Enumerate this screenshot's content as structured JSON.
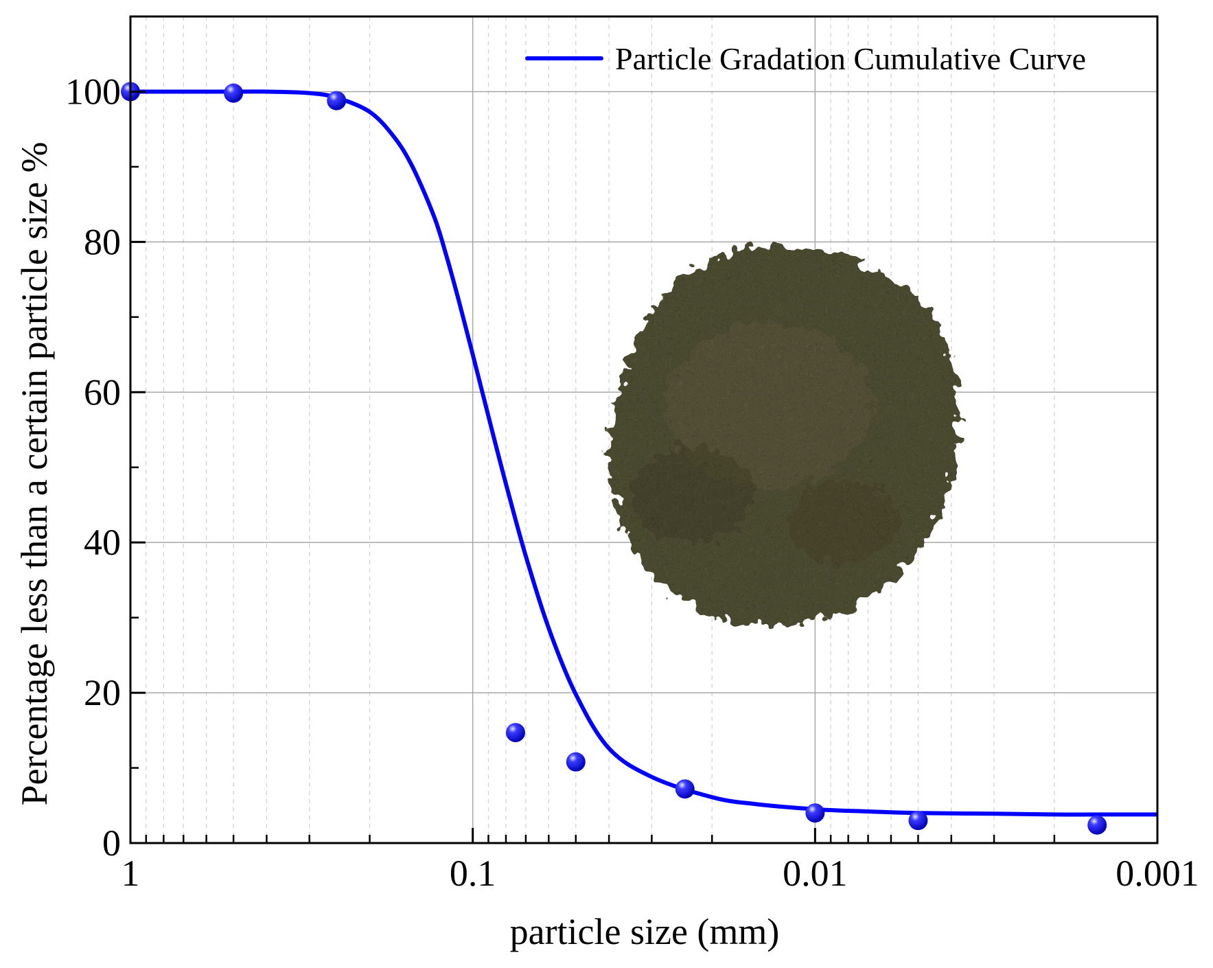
{
  "chart_data": {
    "type": "scatter",
    "xlabel": "particle size (mm)",
    "ylabel": "Percentage less than a certain particle size %",
    "x_scale": "log",
    "x_reversed": true,
    "xlim": [
      1,
      0.001
    ],
    "ylim": [
      0,
      110
    ],
    "grid": true,
    "legend_position": "top-right",
    "x_ticks": [
      {
        "value": 1,
        "label": "1"
      },
      {
        "value": 0.1,
        "label": "0.1"
      },
      {
        "value": 0.01,
        "label": "0.01"
      },
      {
        "value": 0.001,
        "label": "0.001"
      }
    ],
    "y_ticks": [
      {
        "value": 0,
        "label": "0"
      },
      {
        "value": 20,
        "label": "20"
      },
      {
        "value": 40,
        "label": "40"
      },
      {
        "value": 60,
        "label": "60"
      },
      {
        "value": 80,
        "label": "80"
      },
      {
        "value": 100,
        "label": "100"
      }
    ],
    "series": [
      {
        "name": "Particle Gradation Cumulative Curve",
        "kind": "line",
        "color": "#0000ff",
        "x": [
          1,
          0.5,
          0.4,
          0.3,
          0.25,
          0.2,
          0.17,
          0.15,
          0.13,
          0.12,
          0.11,
          0.1,
          0.09,
          0.08,
          0.07,
          0.06,
          0.05,
          0.04,
          0.03,
          0.02,
          0.015,
          0.01,
          0.007,
          0.005,
          0.003,
          0.002,
          0.0015,
          0.001
        ],
        "y": [
          100,
          100,
          100,
          99.8,
          99.2,
          97.3,
          94,
          90,
          83.5,
          78.5,
          72.3,
          65,
          56.8,
          47.8,
          38.2,
          28.6,
          19.8,
          12.6,
          8.8,
          6.1,
          5.2,
          4.5,
          4.2,
          4.0,
          3.9,
          3.8,
          3.8,
          3.8
        ]
      },
      {
        "name": "",
        "kind": "points",
        "color": "#1a1aff",
        "x": [
          1,
          0.5,
          0.25,
          0.075,
          0.05,
          0.024,
          0.01,
          0.005,
          0.0015
        ],
        "y": [
          100,
          99.8,
          98.8,
          14.7,
          10.8,
          7.2,
          4.0,
          3.0,
          2.4
        ]
      }
    ]
  },
  "inset_photo": {
    "subject": "soil-sample-photo",
    "base_color": "#57563a"
  }
}
